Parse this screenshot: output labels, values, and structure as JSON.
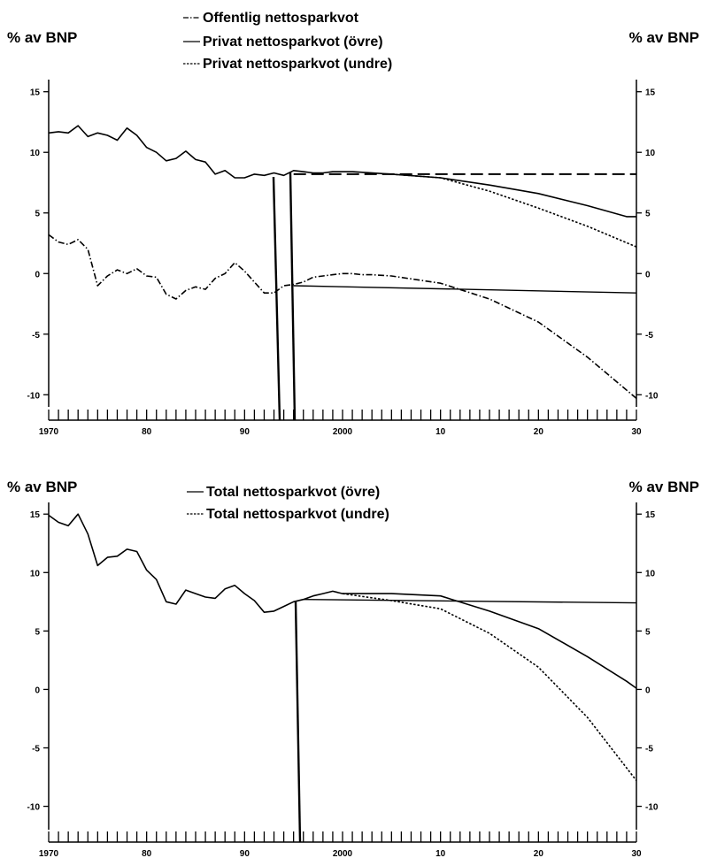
{
  "chart_data": [
    {
      "type": "line",
      "ylabel_left": "% av BNP",
      "ylabel_right": "% av BNP",
      "ylim": [
        -11,
        16
      ],
      "xlim": [
        1970,
        2030
      ],
      "x_tick_labels": [
        "1970",
        "80",
        "90",
        "2000",
        "10",
        "20",
        "30"
      ],
      "x_tick_years": [
        1970,
        1980,
        1990,
        2000,
        2010,
        2020,
        2030
      ],
      "y_ticks": [
        15,
        10,
        5,
        0,
        -5,
        -10
      ],
      "y_tick_labels_left": [
        "15",
        "10",
        "5",
        "0",
        "-5",
        "-10"
      ],
      "y_tick_labels_right": [
        "15",
        "10",
        "5",
        "0",
        "-5",
        "-10"
      ],
      "legend": [
        "Offentlig nettosparkvot",
        "Privat nettosparkvot (övre)",
        "Privat nettosparkvot (undre)"
      ],
      "series": [
        {
          "name": "Offentlig nettosparkvot",
          "style": "dashdot",
          "x": [
            1970,
            1971,
            1972,
            1973,
            1974,
            1975,
            1976,
            1977,
            1978,
            1979,
            1980,
            1981,
            1982,
            1983,
            1984,
            1985,
            1986,
            1987,
            1988,
            1989,
            1990,
            1991,
            1992,
            1993,
            1994,
            1995,
            1996,
            1997,
            1998,
            1999,
            2000,
            2001,
            2002,
            2003,
            2005,
            2010,
            2015,
            2020,
            2025,
            2030
          ],
          "y": [
            3.2,
            2.6,
            2.4,
            2.8,
            2.0,
            -1.0,
            -0.2,
            0.3,
            0.0,
            0.4,
            -0.2,
            -0.3,
            -1.7,
            -2.1,
            -1.4,
            -1.1,
            -1.3,
            -0.4,
            0.0,
            0.9,
            0.2,
            -0.7,
            -1.6,
            -1.6,
            -1.0,
            -0.9,
            -0.7,
            -0.3,
            -0.2,
            -0.1,
            0.0,
            0.0,
            -0.1,
            -0.1,
            -0.2,
            -0.8,
            -2.1,
            -4.0,
            -6.9,
            -10.3
          ]
        },
        {
          "name": "Privat nettosparkvot (övre)",
          "style": "solid",
          "x": [
            1970,
            1971,
            1972,
            1973,
            1974,
            1975,
            1976,
            1977,
            1978,
            1979,
            1980,
            1981,
            1982,
            1983,
            1984,
            1985,
            1986,
            1987,
            1988,
            1989,
            1990,
            1991,
            1992,
            1993,
            1994,
            1995,
            1996,
            1997,
            1998,
            1999,
            2000,
            2001,
            2005,
            2010,
            2015,
            2020,
            2025,
            2029,
            2030
          ],
          "y": [
            11.6,
            11.7,
            11.6,
            12.2,
            11.3,
            11.6,
            11.4,
            11.0,
            12.0,
            11.4,
            10.4,
            10.0,
            9.3,
            9.5,
            10.1,
            9.4,
            9.2,
            8.2,
            8.5,
            7.9,
            7.9,
            8.2,
            8.1,
            8.3,
            8.1,
            8.5,
            8.4,
            8.3,
            8.3,
            8.4,
            8.4,
            8.4,
            8.2,
            7.9,
            7.3,
            6.6,
            5.6,
            4.7,
            4.7
          ]
        },
        {
          "name": "Privat nettosparkvot (undre)",
          "style": "dotted",
          "x": [
            2005,
            2010,
            2015,
            2020,
            2025,
            2030
          ],
          "y": [
            8.2,
            7.9,
            6.8,
            5.4,
            3.9,
            2.2
          ]
        }
      ],
      "reference_lines": [
        {
          "style": "long-dash",
          "x": [
            1995,
            2030
          ],
          "y": [
            8.2,
            8.2
          ]
        },
        {
          "style": "solid",
          "x": [
            1995,
            2030
          ],
          "y": [
            -1.0,
            -1.6
          ]
        }
      ]
    },
    {
      "type": "line",
      "ylabel_left": "% av BNP",
      "ylabel_right": "% av BNP",
      "ylim": [
        -12,
        16
      ],
      "xlim": [
        1970,
        2030
      ],
      "x_tick_labels": [
        "1970",
        "80",
        "90",
        "2000",
        "10",
        "20",
        "30"
      ],
      "x_tick_years": [
        1970,
        1980,
        1990,
        2000,
        2010,
        2020,
        2030
      ],
      "y_ticks": [
        15,
        10,
        5,
        0,
        -5,
        -10
      ],
      "y_tick_labels_left": [
        "15",
        "10",
        "5",
        "0",
        "-5",
        "-10"
      ],
      "y_tick_labels_right": [
        "15",
        "10",
        "5",
        "0",
        "-5",
        "-10"
      ],
      "legend": [
        "Total nettosparkvot (övre)",
        "Total nettosparkvot (undre)"
      ],
      "series": [
        {
          "name": "Total nettosparkvot (övre)",
          "style": "solid",
          "x": [
            1970,
            1971,
            1972,
            1973,
            1974,
            1975,
            1976,
            1977,
            1978,
            1979,
            1980,
            1981,
            1982,
            1983,
            1984,
            1985,
            1986,
            1987,
            1988,
            1989,
            1990,
            1991,
            1992,
            1993,
            1994,
            1995,
            1996,
            1997,
            1998,
            1999,
            2000,
            2001,
            2005,
            2010,
            2015,
            2020,
            2025,
            2029,
            2030
          ],
          "y": [
            14.9,
            14.3,
            14.0,
            15.0,
            13.3,
            10.6,
            11.3,
            11.4,
            12.0,
            11.8,
            10.2,
            9.4,
            7.5,
            7.3,
            8.5,
            8.2,
            7.9,
            7.8,
            8.6,
            8.9,
            8.2,
            7.6,
            6.6,
            6.7,
            7.1,
            7.5,
            7.7,
            8.0,
            8.2,
            8.4,
            8.2,
            8.2,
            8.2,
            8.0,
            6.7,
            5.2,
            2.8,
            0.7,
            0.1
          ]
        },
        {
          "name": "Total nettosparkvot (undre)",
          "style": "dotted",
          "x": [
            2000,
            2005,
            2010,
            2015,
            2020,
            2025,
            2030
          ],
          "y": [
            8.2,
            7.6,
            6.9,
            4.8,
            1.9,
            -2.4,
            -7.8
          ]
        }
      ],
      "reference_lines": [
        {
          "style": "solid",
          "x": [
            1996,
            2030
          ],
          "y": [
            7.7,
            7.4
          ]
        }
      ]
    }
  ]
}
